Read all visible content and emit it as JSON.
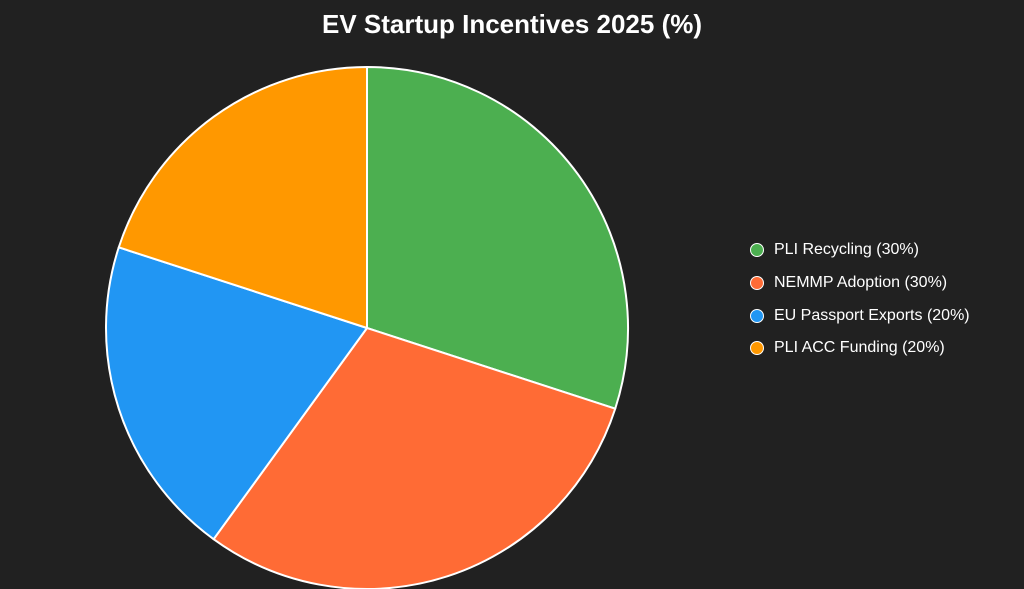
{
  "chart_data": {
    "type": "pie",
    "title": "EV Startup Incentives 2025 (%)",
    "categories": [
      "PLI Recycling",
      "NEMMP Adoption",
      "EU Passport Exports",
      "PLI ACC Funding"
    ],
    "values": [
      30,
      30,
      20,
      20
    ],
    "colors": [
      "#4CAF50",
      "#FF6B35",
      "#2196F3",
      "#FF9800"
    ],
    "legend_labels": [
      "PLI Recycling (30%)",
      "NEMMP Adoption (30%)",
      "EU Passport Exports (20%)",
      "PLI ACC Funding (20%)"
    ],
    "legend_position": "right",
    "slice_border_color": "#FFFFFF"
  }
}
